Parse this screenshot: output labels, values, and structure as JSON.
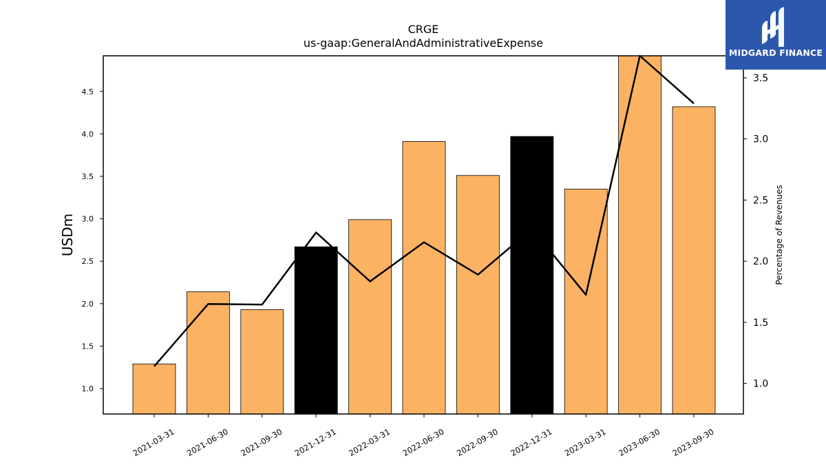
{
  "chart_data": {
    "type": "bar",
    "title": "CRGE",
    "subtitle": "us-gaap:GeneralAndAdministrativeExpense",
    "ylabel": "USDm",
    "y2label": "Percentage of Revenues",
    "categories": [
      "2021-03-31",
      "2021-06-30",
      "2021-09-30",
      "2021-12-31",
      "2022-03-31",
      "2022-06-30",
      "2022-09-30",
      "2022-12-31",
      "2023-03-31",
      "2023-06-30",
      "2023-09-30"
    ],
    "series": [
      {
        "values": [
          1.29,
          2.14,
          1.93,
          2.67,
          2.99,
          3.91,
          3.51,
          3.97,
          3.35,
          4.95,
          4.32
        ],
        "highlighted": [
          false,
          false,
          false,
          true,
          false,
          false,
          false,
          true,
          false,
          false,
          false
        ],
        "color": "#fbb263",
        "highlight_color": "#000000"
      },
      {
        "type": "line",
        "axis": "right",
        "values": [
          1.14,
          1.65,
          1.645,
          2.235,
          1.835,
          2.155,
          1.89,
          2.265,
          1.725,
          3.68,
          3.29
        ],
        "color": "#000000"
      }
    ],
    "ylim": [
      0.7,
      4.92
    ],
    "y2lim": [
      0.75,
      3.68
    ],
    "yticks": [
      "1.0",
      "1.5",
      "2.0",
      "2.5",
      "3.0",
      "3.5",
      "4.0",
      "4.5"
    ],
    "y2ticks": [
      "1.0",
      "1.5",
      "2.0",
      "2.5",
      "3.0",
      "3.5"
    ],
    "grid": false
  },
  "logo": {
    "text": "MIDGARD FINANCE",
    "icon": "midgard-logo-icon",
    "color": "#2b58ad"
  }
}
